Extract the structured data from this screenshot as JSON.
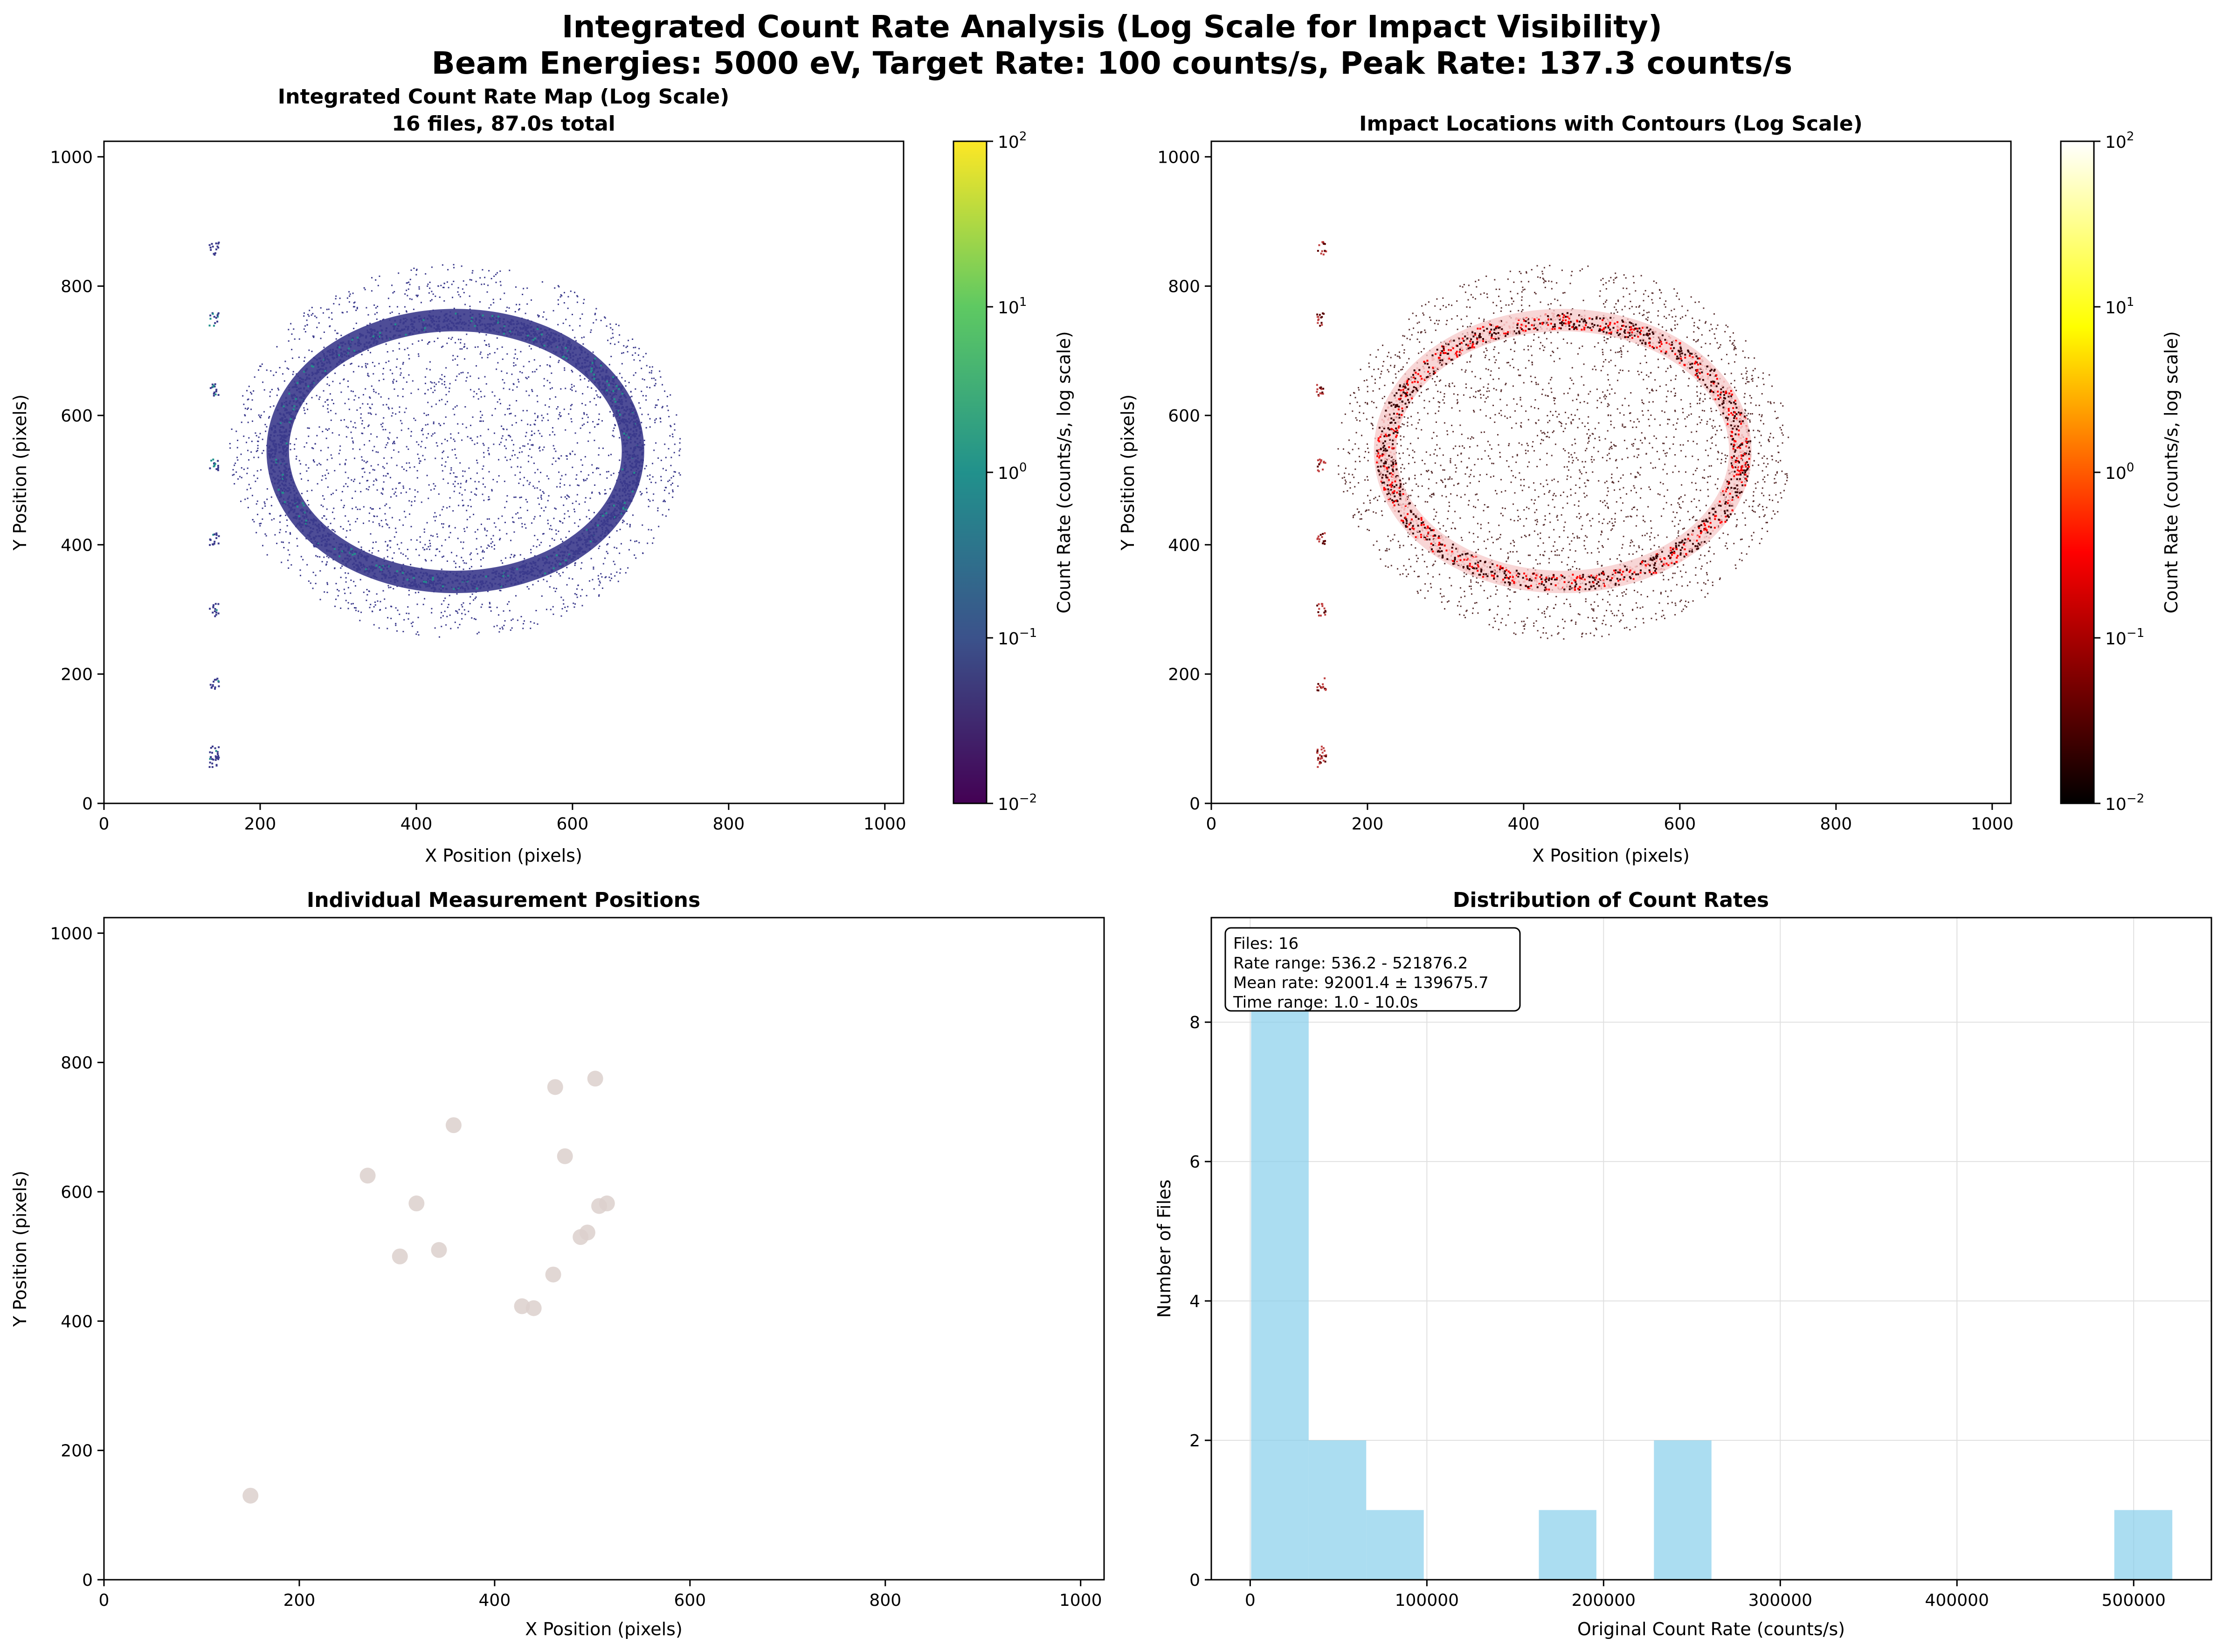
{
  "figure": {
    "title_line1": "Integrated Count Rate Analysis (Log Scale for Impact Visibility)",
    "title_line2": "Beam Energies: 5000 eV, Target Rate: 100 counts/s, Peak Rate: 137.3 counts/s"
  },
  "colors": {
    "viridis_low": "#440154",
    "viridis_mid": "#21918c",
    "viridis_high": "#fde725",
    "hot_low": "#000000",
    "hot_mid": "#ff0000",
    "hot_high": "#ffffff",
    "ring_viridis": "#3b3a8c",
    "hist_bar": "#87ceeb",
    "points": "#dcd0cc"
  },
  "chart_data": [
    {
      "type": "heatmap",
      "title_line1": "Integrated Count Rate Map (Log Scale)",
      "title_line2": "16 files, 87.0s total",
      "xlabel": "X Position (pixels)",
      "ylabel": "Y Position (pixels)",
      "xlim": [
        0,
        1024
      ],
      "ylim": [
        0,
        1024
      ],
      "xticks": [
        "0",
        "200",
        "400",
        "600",
        "800",
        "1000"
      ],
      "yticks": [
        "0",
        "200",
        "400",
        "600",
        "800",
        "1000"
      ],
      "colormap": "viridis",
      "colorbar_label": "Count Rate (counts/s, log scale)",
      "colorbar_range": [
        0.01,
        137.3
      ],
      "colorbar_ticks": [
        "10",
        "10",
        "10",
        "10",
        "10"
      ],
      "colorbar_exponents": [
        "−2",
        "−1",
        "0",
        "1",
        "2"
      ],
      "features": {
        "ring_center": [
          450,
          545
        ],
        "ring_radius_x": [
          215,
          240
        ],
        "ring_radius_y": [
          190,
          215
        ],
        "halo_radius_x": 290,
        "halo_radius_y": 290,
        "left_column_x": 140,
        "left_column_spots_y": [
          860,
          750,
          640,
          525,
          410,
          300,
          185,
          80,
          65
        ]
      }
    },
    {
      "type": "heatmap",
      "title": "Impact Locations with Contours (Log Scale)",
      "xlabel": "X Position (pixels)",
      "ylabel": "Y Position (pixels)",
      "xlim": [
        0,
        1024
      ],
      "ylim": [
        0,
        1024
      ],
      "xticks": [
        "0",
        "200",
        "400",
        "600",
        "800",
        "1000"
      ],
      "yticks": [
        "0",
        "200",
        "400",
        "600",
        "800",
        "1000"
      ],
      "colormap": "hot",
      "colorbar_label": "Count Rate (counts/s, log scale)",
      "colorbar_range": [
        0.01,
        137.3
      ],
      "colorbar_ticks": [
        "10",
        "10",
        "10",
        "10",
        "10"
      ],
      "colorbar_exponents": [
        "−2",
        "−1",
        "0",
        "1",
        "2"
      ]
    },
    {
      "type": "scatter",
      "title": "Individual Measurement Positions",
      "xlabel": "X Position (pixels)",
      "ylabel": "Y Position (pixels)",
      "xlim": [
        0,
        1024
      ],
      "ylim": [
        0,
        1024
      ],
      "xticks": [
        "0",
        "200",
        "400",
        "600",
        "800",
        "1000"
      ],
      "yticks": [
        "0",
        "200",
        "400",
        "600",
        "800",
        "1000"
      ],
      "points": [
        {
          "x": 150,
          "y": 130
        },
        {
          "x": 270,
          "y": 625
        },
        {
          "x": 303,
          "y": 500
        },
        {
          "x": 320,
          "y": 582
        },
        {
          "x": 343,
          "y": 510
        },
        {
          "x": 358,
          "y": 703
        },
        {
          "x": 428,
          "y": 423
        },
        {
          "x": 440,
          "y": 420
        },
        {
          "x": 460,
          "y": 472
        },
        {
          "x": 462,
          "y": 762
        },
        {
          "x": 472,
          "y": 655
        },
        {
          "x": 488,
          "y": 530
        },
        {
          "x": 495,
          "y": 537
        },
        {
          "x": 503,
          "y": 775
        },
        {
          "x": 507,
          "y": 578
        },
        {
          "x": 515,
          "y": 582
        }
      ]
    },
    {
      "type": "bar",
      "title": "Distribution of Count Rates",
      "xlabel": "Original Count Rate (counts/s)",
      "ylabel": "Number of Files",
      "xlim": [
        -22000,
        544000
      ],
      "ylim": [
        0,
        9.5
      ],
      "xticks": [
        "0",
        "100000",
        "200000",
        "300000",
        "400000",
        "500000"
      ],
      "xtick_values": [
        0,
        100000,
        200000,
        300000,
        400000,
        500000
      ],
      "yticks": [
        "0",
        "2",
        "4",
        "6",
        "8"
      ],
      "ytick_values": [
        0,
        2,
        4,
        6,
        8
      ],
      "bins": [
        536.2,
        33103.2,
        65670.2,
        98237.1,
        130804.1,
        163371.0,
        195938.0,
        228505.0,
        261072.0,
        293638.9,
        326205.9,
        358772.9,
        391339.9,
        423906.8,
        456473.8,
        489040.8,
        521876.2
      ],
      "counts": [
        9,
        2,
        1,
        0,
        0,
        1,
        0,
        2,
        0,
        0,
        0,
        0,
        0,
        0,
        0,
        1
      ],
      "stats": {
        "line1": "Files: 16",
        "line2": "Rate range: 536.2 - 521876.2",
        "line3": "Mean rate: 92001.4 ± 139675.7",
        "line4": "Time range: 1.0 - 10.0s"
      }
    }
  ]
}
